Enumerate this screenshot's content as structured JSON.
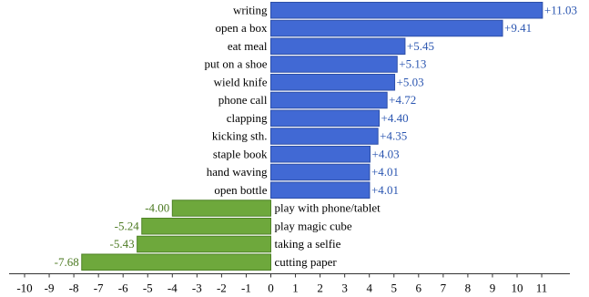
{
  "chart_data": {
    "type": "bar",
    "orientation": "horizontal",
    "categories": [
      "writing",
      "open a box",
      "eat meal",
      "put on a shoe",
      "wield knife",
      "phone call",
      "clapping",
      "kicking sth.",
      "staple book",
      "hand waving",
      "open bottle",
      "play with phone/tablet",
      "play magic cube",
      "taking a selfie",
      "cutting paper"
    ],
    "values": [
      11.03,
      9.41,
      5.45,
      5.13,
      5.03,
      4.72,
      4.4,
      4.35,
      4.03,
      4.01,
      4.01,
      -4.0,
      -5.24,
      -5.43,
      -7.68
    ],
    "value_labels": [
      "+11.03",
      "+9.41",
      "+5.45",
      "+5.13",
      "+5.03",
      "+4.72",
      "+4.40",
      "+4.35",
      "+4.03",
      "+4.01",
      "+4.01",
      "-4.00",
      "-5.24",
      "-5.43",
      "-7.68"
    ],
    "xlim": [
      -10,
      11
    ],
    "xticks": [
      "-10",
      "-9",
      "-8",
      "-7",
      "-6",
      "-5",
      "-4",
      "-3",
      "-2",
      "-1",
      "0",
      "1",
      "2",
      "3",
      "4",
      "5",
      "6",
      "7",
      "8",
      "9",
      "10",
      "11"
    ],
    "title": "",
    "xlabel": "",
    "ylabel": "",
    "grid": false,
    "colors": {
      "positive_bar": "#4169d4",
      "positive_edge": "#2d4fa8",
      "negative_bar": "#6ea83c",
      "negative_edge": "#4f8226",
      "positive_label": "#2a55b0",
      "negative_label": "#4c7a22",
      "category_text": "#000000",
      "axis": "#333333"
    }
  }
}
